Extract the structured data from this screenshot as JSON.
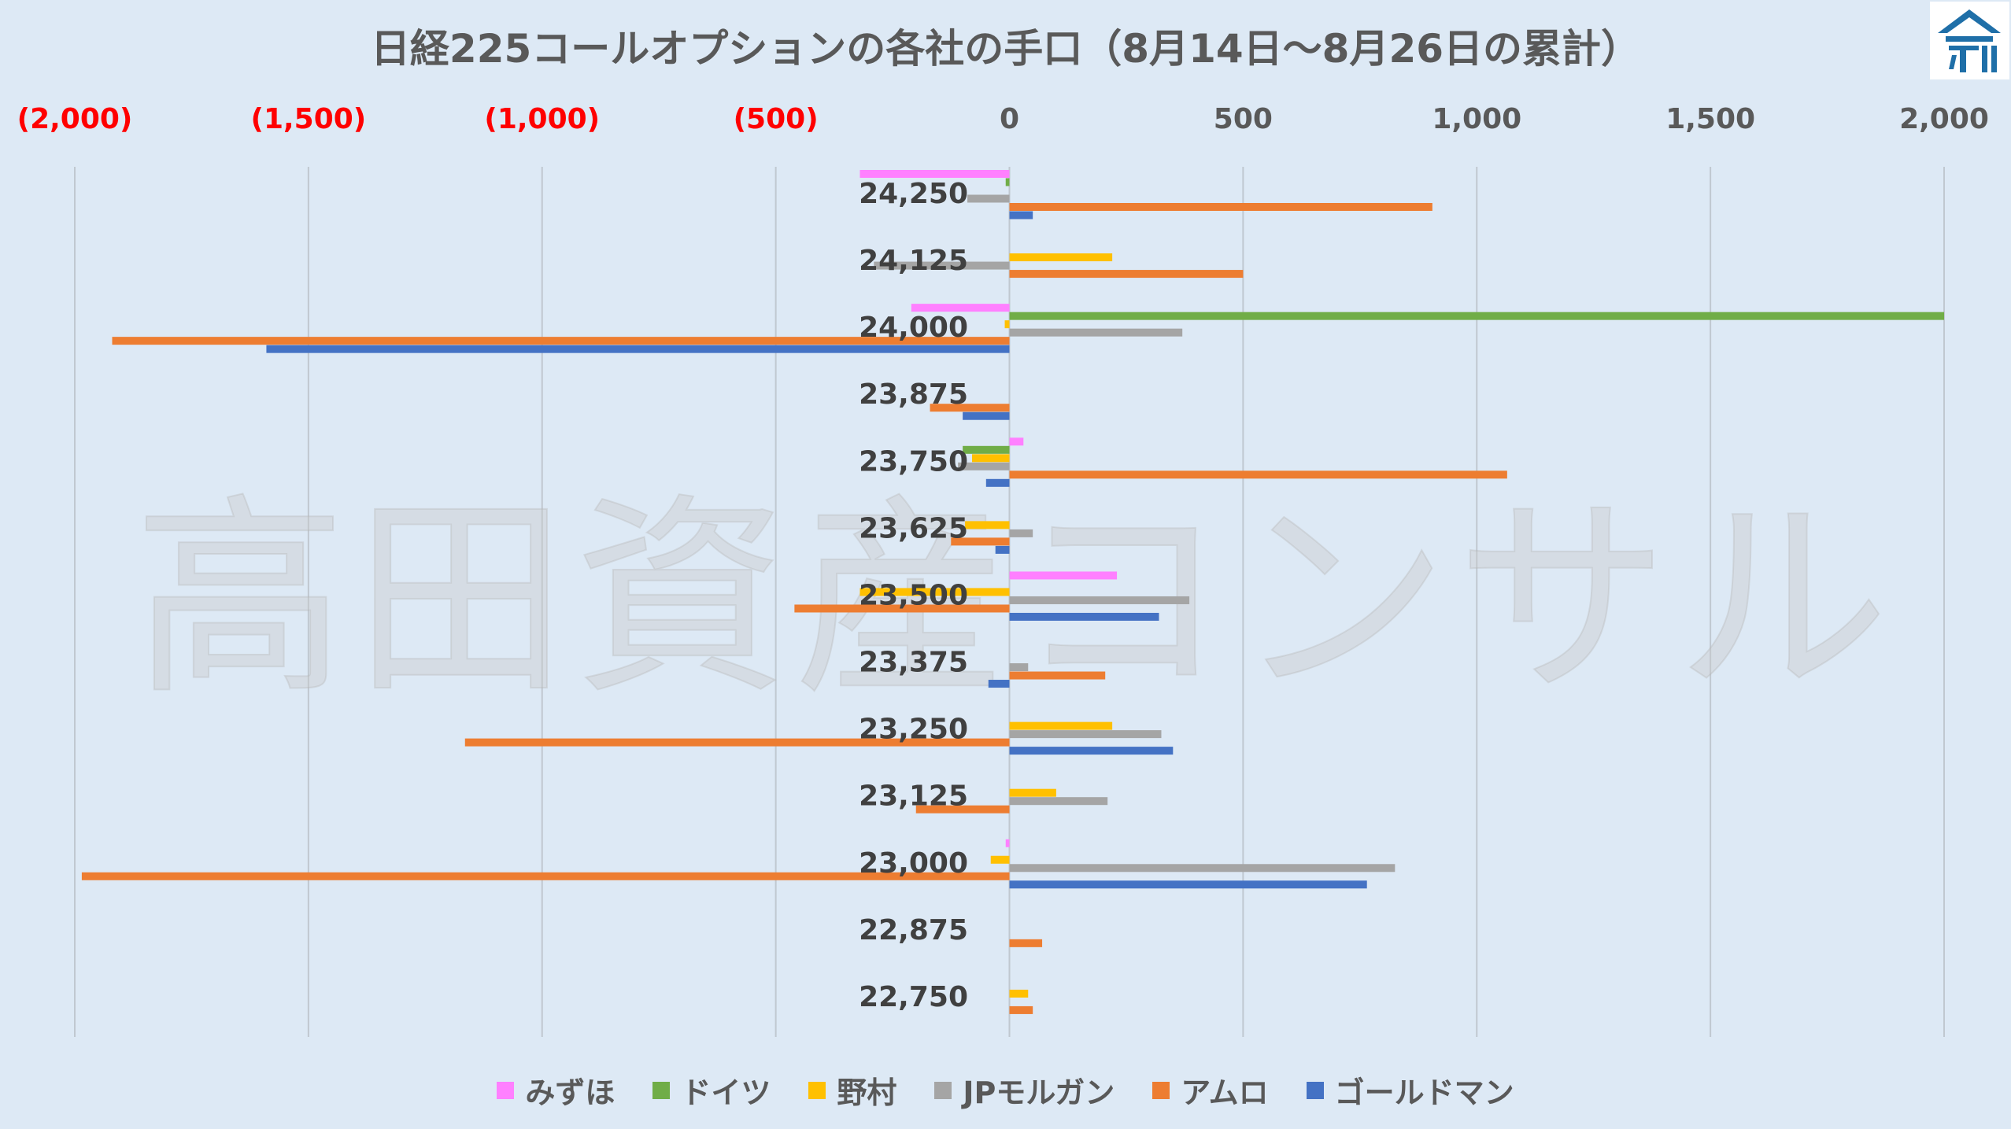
{
  "title": "日経225コールオプションの各社の手口（8月14日〜8月26日の累計）",
  "watermark": "高田資産コンサル",
  "logo": {
    "icon": "building-icon",
    "color": "#1f6fa8"
  },
  "colors": {
    "negative_tick": "#ff0000",
    "tick": "#595959",
    "category": "#404040",
    "grid": "#c0c8d0"
  },
  "chart_data": {
    "type": "bar",
    "orientation": "horizontal",
    "xlim": [
      -2000,
      2000
    ],
    "xticks": [
      -2000,
      -1500,
      -1000,
      -500,
      0,
      500,
      1000,
      1500,
      2000
    ],
    "xtick_labels": [
      "(2,000)",
      "(1,500)",
      "(1,000)",
      "(500)",
      "0",
      "500",
      "1,000",
      "1,500",
      "2,000"
    ],
    "xaxis_position": "top",
    "grid": true,
    "legend_position": "bottom",
    "categories": [
      "24,250",
      "24,125",
      "24,000",
      "23,875",
      "23,750",
      "23,625",
      "23,500",
      "23,375",
      "23,250",
      "23,125",
      "23,000",
      "22,875",
      "22,750"
    ],
    "series": [
      {
        "name": "みずほ",
        "color": "#ff80ff",
        "values": [
          -320,
          0,
          -210,
          0,
          30,
          0,
          230,
          0,
          0,
          0,
          -8,
          0,
          0
        ]
      },
      {
        "name": "ドイツ",
        "color": "#70ad47",
        "values": [
          -8,
          0,
          2000,
          0,
          -100,
          0,
          0,
          0,
          0,
          0,
          0,
          0,
          0
        ]
      },
      {
        "name": "野村",
        "color": "#ffc000",
        "values": [
          0,
          220,
          -10,
          0,
          -80,
          -95,
          -320,
          0,
          220,
          100,
          -40,
          0,
          40
        ]
      },
      {
        "name": "JPモルガン",
        "color": "#a5a5a5",
        "values": [
          -90,
          -290,
          370,
          0,
          -110,
          50,
          385,
          40,
          325,
          210,
          825,
          0,
          0
        ]
      },
      {
        "name": "アムロ",
        "color": "#ed7d31",
        "values": [
          905,
          500,
          -1920,
          -170,
          1065,
          -125,
          -460,
          205,
          -1165,
          -200,
          -1985,
          70,
          50
        ]
      },
      {
        "name": "ゴールドマン",
        "color": "#4472c4",
        "values": [
          50,
          0,
          -1590,
          -100,
          -50,
          -30,
          320,
          -45,
          350,
          0,
          765,
          0,
          0
        ]
      }
    ]
  }
}
